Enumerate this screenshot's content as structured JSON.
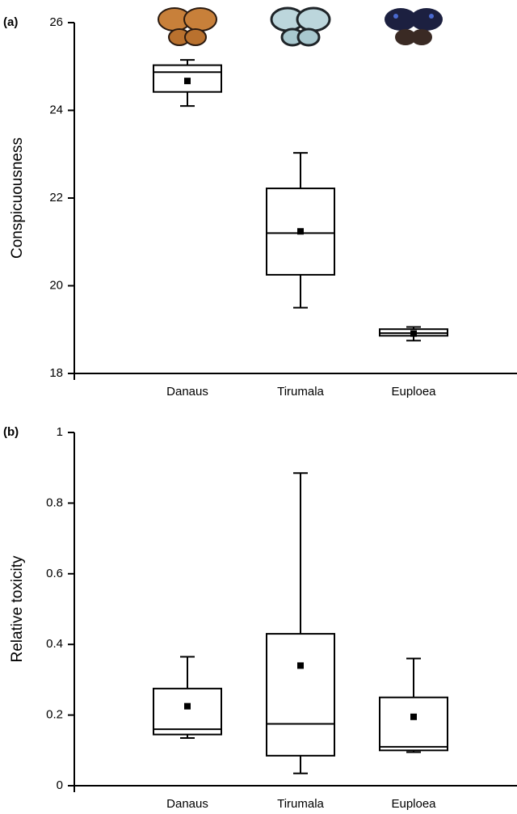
{
  "chart_data": [
    {
      "type": "box",
      "panel_label": "(a)",
      "ylabel": "Conspicuousness",
      "categories": [
        "Danaus",
        "Tirumala",
        "Euploea"
      ],
      "min": [
        24.1,
        19.5,
        18.75
      ],
      "q1": [
        24.42,
        20.25,
        18.86
      ],
      "median": [
        24.87,
        21.2,
        18.92
      ],
      "q3": [
        25.03,
        22.22,
        19.01
      ],
      "max": [
        25.15,
        23.03,
        19.06
      ],
      "mean": [
        24.67,
        21.24,
        18.91
      ],
      "ylim": [
        18,
        26
      ],
      "yticks": [
        18,
        20,
        22,
        24,
        26
      ],
      "color": "#000000"
    },
    {
      "type": "box",
      "panel_label": "(b)",
      "ylabel": "Relative toxicity",
      "categories": [
        "Danaus",
        "Tirumala",
        "Euploea"
      ],
      "min": [
        0.135,
        0.035,
        0.095
      ],
      "q1": [
        0.145,
        0.085,
        0.1
      ],
      "median": [
        0.16,
        0.175,
        0.11
      ],
      "q3": [
        0.275,
        0.43,
        0.25
      ],
      "max": [
        0.365,
        0.885,
        0.36
      ],
      "mean": [
        0.225,
        0.34,
        0.195
      ],
      "ylim": [
        0,
        1
      ],
      "yticks": [
        0,
        0.2,
        0.4,
        0.6,
        0.8,
        1
      ],
      "color": "#000000"
    }
  ]
}
